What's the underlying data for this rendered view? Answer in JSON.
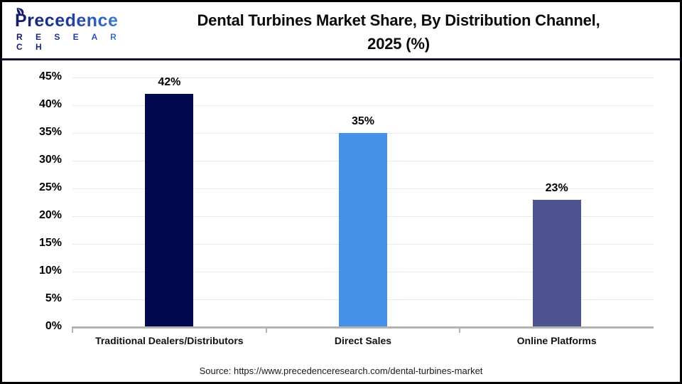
{
  "logo": {
    "brand": "Precedence",
    "subbrand": "R E S E A R C H"
  },
  "header": {
    "title_line1": "Dental Turbines Market Share, By Distribution Channel,",
    "title_line2": "2025 (%)"
  },
  "footer": {
    "source": "Source: https://www.precedenceresearch.com/dental-turbines-market"
  },
  "chart_data": {
    "type": "bar",
    "title": "Dental Turbines Market Share, By Distribution Channel, 2025 (%)",
    "categories": [
      "Traditional Dealers/Distributors",
      "Direct Sales",
      "Online Platforms"
    ],
    "values": [
      42,
      35,
      23
    ],
    "value_labels": [
      "42%",
      "35%",
      "23%"
    ],
    "bar_colors": [
      "#03094e",
      "#4590e8",
      "#4d538f"
    ],
    "xlabel": "",
    "ylabel": "",
    "ylim": [
      0,
      45
    ],
    "ytick_step": 5,
    "ytick_labels": [
      "0%",
      "5%",
      "10%",
      "15%",
      "20%",
      "25%",
      "30%",
      "35%",
      "40%",
      "45%"
    ],
    "grid": true,
    "legend": false,
    "grid_color": "#e9e9e9",
    "axis_color": "#b3b3b3"
  }
}
